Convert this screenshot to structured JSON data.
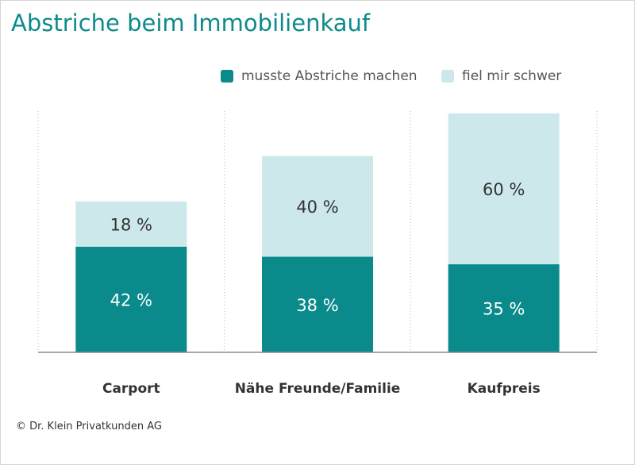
{
  "title": "Abstriche beim Immobilienkauf",
  "footer": "© Dr. Klein Privatkunden AG",
  "colors": {
    "title": "#0e8a8a",
    "series_dark": "#0a8a8b",
    "series_light": "#cde8eb"
  },
  "legend": [
    {
      "label": "musste Abstriche machen",
      "color": "#0a8a8b"
    },
    {
      "label": "fiel mir schwer",
      "color": "#cde8eb"
    }
  ],
  "chart_data": {
    "type": "bar",
    "stacked": true,
    "title": "Abstriche beim Immobilienkauf",
    "categories": [
      "Carport",
      "Nähe Freunde/Familie",
      "Kaufpreis"
    ],
    "series": [
      {
        "name": "musste Abstriche machen",
        "values": [
          42,
          38,
          35
        ],
        "labels": [
          "42 %",
          "38 %",
          "35 %"
        ],
        "color": "#0a8a8b"
      },
      {
        "name": "fiel mir schwer",
        "values": [
          18,
          40,
          60
        ],
        "labels": [
          "18 %",
          "40 %",
          "60 %"
        ],
        "color": "#cde8eb"
      }
    ],
    "ylim": [
      0,
      95
    ],
    "grid": "vertical-dotted",
    "legend_position": "top-right"
  }
}
